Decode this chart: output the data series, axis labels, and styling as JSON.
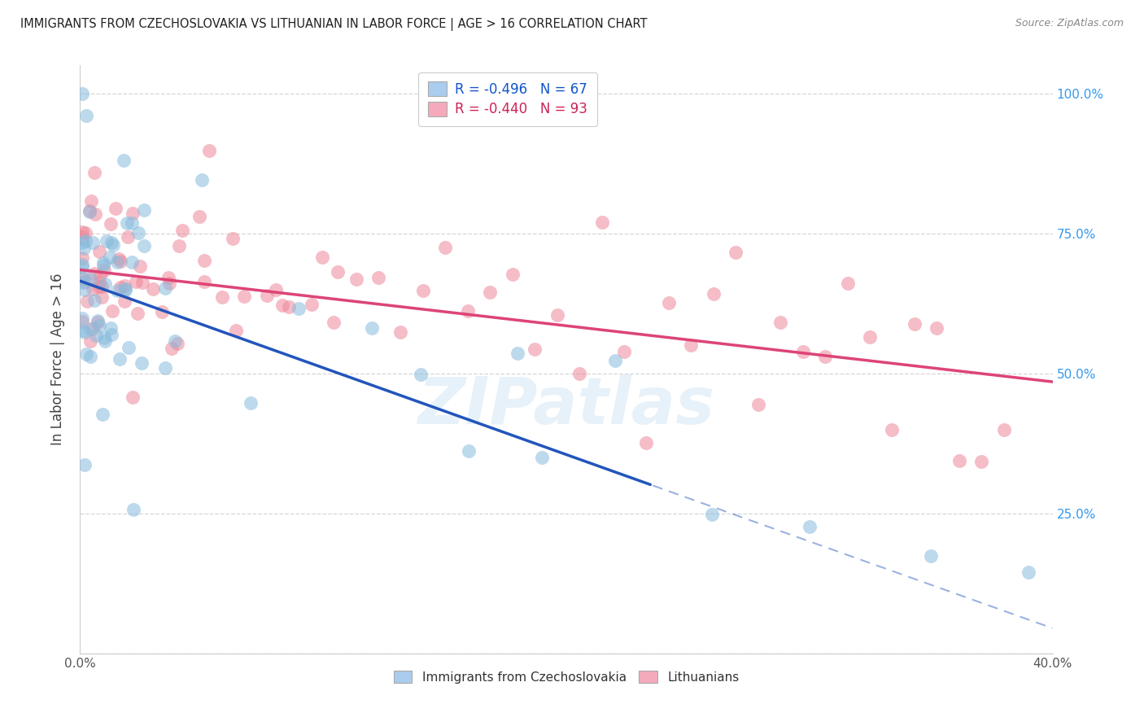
{
  "title": "IMMIGRANTS FROM CZECHOSLOVAKIA VS LITHUANIAN IN LABOR FORCE | AGE > 16 CORRELATION CHART",
  "source": "Source: ZipAtlas.com",
  "ylabel_left": "In Labor Force | Age > 16",
  "xlim": [
    0.0,
    0.4
  ],
  "ylim": [
    0.0,
    1.05
  ],
  "blue_dot_color": "#88bbdd",
  "pink_dot_color": "#ee8899",
  "blue_line_color": "#2255bb",
  "pink_line_color": "#dd4477",
  "watermark": "ZIPatlas",
  "bottom_legend": [
    "Immigrants from Czechoslovakia",
    "Lithuanians"
  ],
  "blue_R": "-0.496",
  "blue_N": "67",
  "pink_R": "-0.440",
  "pink_N": "93",
  "blue_line_intercept": 0.665,
  "blue_line_slope": -1.55,
  "blue_line_solid_end": 0.235,
  "pink_line_intercept": 0.685,
  "pink_line_slope": -0.5
}
